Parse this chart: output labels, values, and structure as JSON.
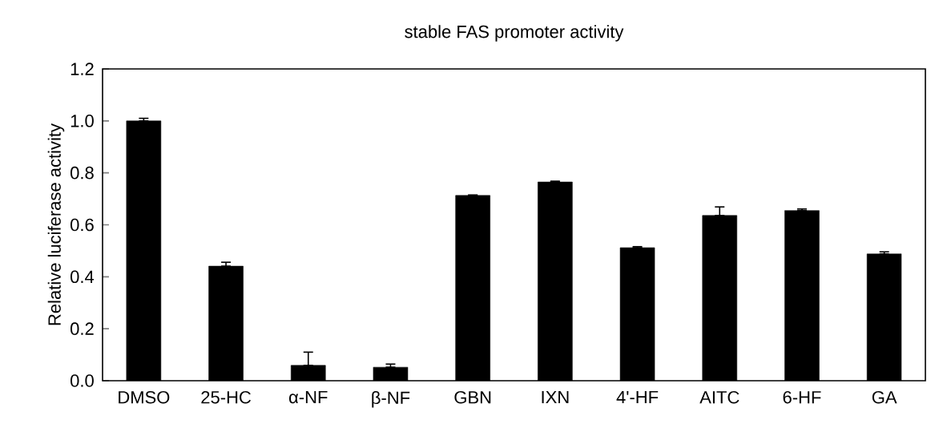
{
  "chart_data": {
    "type": "bar",
    "title": "stable FAS promoter activity",
    "ylabel": "Relative luciferase activity",
    "categories": [
      "DMSO",
      "25-HC",
      "α-NF",
      "β-NF",
      "GBN",
      "IXN",
      "4'-HF",
      "AITC",
      "6-HF",
      "GA"
    ],
    "values": [
      1.0,
      0.441,
      0.059,
      0.052,
      0.713,
      0.765,
      0.512,
      0.636,
      0.655,
      0.488
    ],
    "errors": [
      [
        1.0,
        1.01
      ],
      [
        0.441,
        0.456
      ],
      [
        0.059,
        0.11
      ],
      [
        0.052,
        0.064
      ],
      [
        0.713,
        0.715
      ],
      [
        0.765,
        0.768
      ],
      [
        0.512,
        0.516
      ],
      [
        0.636,
        0.669
      ],
      [
        0.655,
        0.661
      ],
      [
        0.488,
        0.496
      ]
    ],
    "color": "#000000",
    "ylim": [
      0,
      1.2
    ],
    "yticks": [
      {
        "value": 0,
        "label": "0.0"
      },
      0.2,
      0.4,
      0.6,
      0.8,
      {
        "value": 1,
        "label": "1.0"
      },
      1.2
    ],
    "grid": false
  }
}
